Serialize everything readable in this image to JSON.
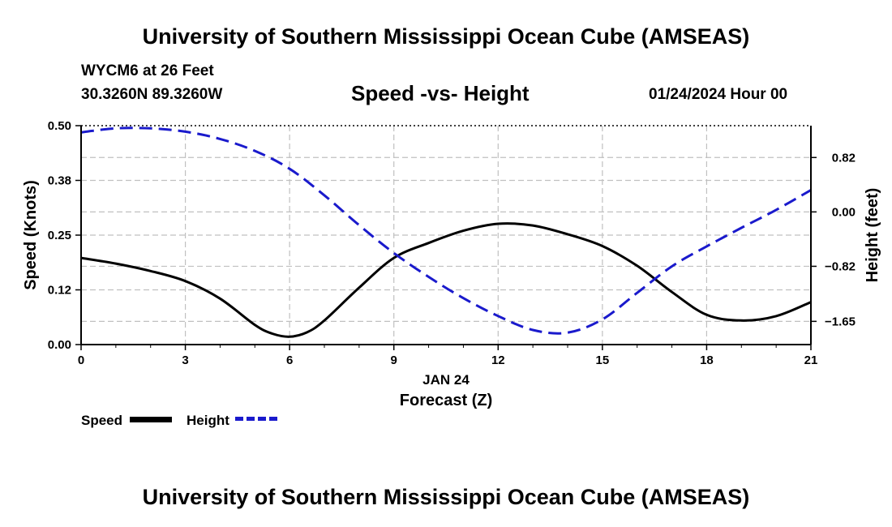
{
  "header": {
    "title": "University of Southern Mississippi Ocean Cube (AMSEAS)",
    "station": "WYCM6 at 26 Feet",
    "coordinates": "30.3260N  89.3260W",
    "subtitle": "Speed -vs- Height",
    "datetime": "01/24/2024 Hour 00"
  },
  "footer": {
    "title": "University of Southern Mississippi Ocean Cube (AMSEAS)"
  },
  "legend": {
    "speed_label": "Speed",
    "height_label": "Height"
  },
  "colors": {
    "speed": "#000000",
    "height": "#1a1acc",
    "grid": "#c0c0c0"
  },
  "chart_data": {
    "type": "line",
    "title": "Speed -vs- Height",
    "xlabel": "Forecast (Z)",
    "xlabel_date": "JAN 24",
    "ylabel": "Speed (Knots)",
    "y2label": "Height (feet)",
    "xlim": [
      0,
      21
    ],
    "ylim": [
      0,
      0.5
    ],
    "y2lim": [
      -2.0,
      1.3
    ],
    "x_ticks": [
      0,
      3,
      6,
      9,
      12,
      15,
      18,
      21
    ],
    "x_tick_labels": [
      "0",
      "3",
      "6",
      "9",
      "12",
      "15",
      "18",
      "21"
    ],
    "y_ticks": [
      0,
      0.125,
      0.25,
      0.375,
      0.5
    ],
    "y_tick_labels": [
      "0.00",
      "0.12",
      "0.25",
      "0.38",
      "0.50"
    ],
    "y2_ticks": [
      0.82,
      0.0,
      -0.82,
      -1.65
    ],
    "y2_tick_labels": [
      "0.82",
      "0.00",
      "−0.82",
      "−1.65"
    ],
    "grid": true,
    "series": [
      {
        "name": "Speed",
        "axis": "left",
        "style": "solid",
        "x": [
          0,
          1,
          2,
          3,
          4,
          5,
          5.5,
          6,
          6.5,
          7,
          8,
          9,
          10,
          11,
          12,
          13,
          14,
          15,
          16,
          17,
          18,
          19,
          20,
          21
        ],
        "values": [
          0.198,
          0.185,
          0.168,
          0.145,
          0.105,
          0.045,
          0.025,
          0.018,
          0.028,
          0.055,
          0.13,
          0.198,
          0.232,
          0.26,
          0.276,
          0.272,
          0.252,
          0.225,
          0.18,
          0.12,
          0.068,
          0.055,
          0.065,
          0.097
        ]
      },
      {
        "name": "Height",
        "axis": "right",
        "style": "dashed",
        "x": [
          0,
          1,
          2,
          3,
          4,
          5,
          6,
          7,
          8,
          9,
          10,
          11,
          12,
          13,
          14,
          15,
          16,
          17,
          18,
          19,
          20,
          21
        ],
        "values": [
          1.2,
          1.26,
          1.26,
          1.21,
          1.1,
          0.92,
          0.65,
          0.25,
          -0.2,
          -0.62,
          -0.98,
          -1.3,
          -1.57,
          -1.78,
          -1.82,
          -1.62,
          -1.22,
          -0.82,
          -0.52,
          -0.24,
          0.03,
          0.33
        ]
      }
    ]
  }
}
